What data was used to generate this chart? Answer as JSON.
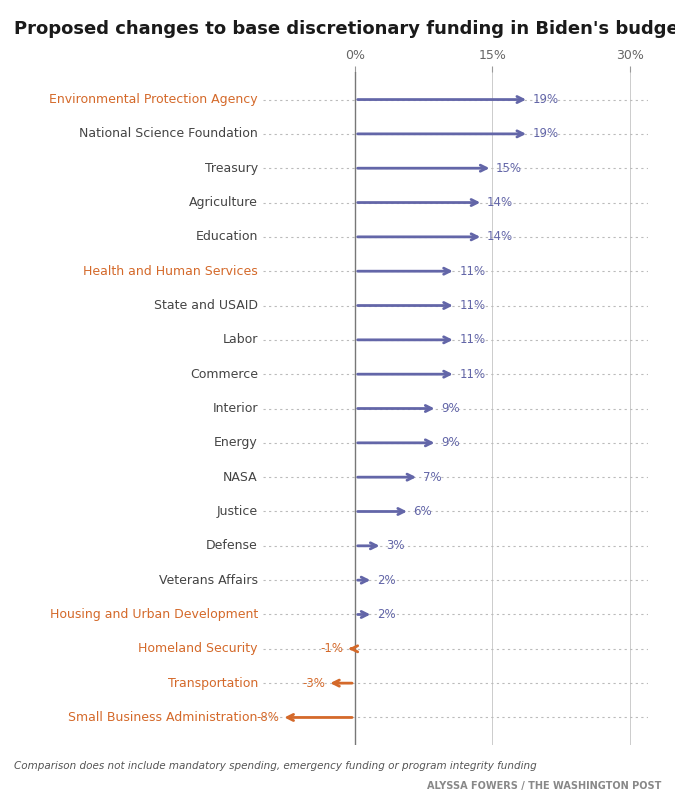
{
  "title": "Proposed changes to base discretionary funding in Biden's budget",
  "agencies": [
    "Environmental Protection Agency",
    "National Science Foundation",
    "Treasury",
    "Agriculture",
    "Education",
    "Health and Human Services",
    "State and USAID",
    "Labor",
    "Commerce",
    "Interior",
    "Energy",
    "NASA",
    "Justice",
    "Defense",
    "Veterans Affairs",
    "Housing and Urban Development",
    "Homeland Security",
    "Transportation",
    "Small Business Administration"
  ],
  "values": [
    19,
    19,
    15,
    14,
    14,
    11,
    11,
    11,
    11,
    9,
    9,
    7,
    6,
    3,
    2,
    2,
    -1,
    -3,
    -8
  ],
  "orange_agencies": [
    "Environmental Protection Agency",
    "Health and Human Services",
    "Housing and Urban Development",
    "Homeland Security",
    "Transportation",
    "Small Business Administration"
  ],
  "positive_color": "#6366a8",
  "negative_color": "#d4692a",
  "dotted_line_color": "#bbbbbb",
  "background_color": "#ffffff",
  "title_color": "#1a1a1a",
  "label_color_normal": "#444444",
  "tick_label_color": "#666666",
  "x_ticks": [
    0,
    15,
    30
  ],
  "xlim_data": [
    -10,
    32
  ],
  "footnote": "Comparison does not include mandatory spending, emergency funding or program integrity funding",
  "credit": "ALYSSA FOWERS / THE WASHINGTON POST",
  "title_fontsize": 13,
  "label_fontsize": 9,
  "value_fontsize": 8.5,
  "tick_fontsize": 9
}
